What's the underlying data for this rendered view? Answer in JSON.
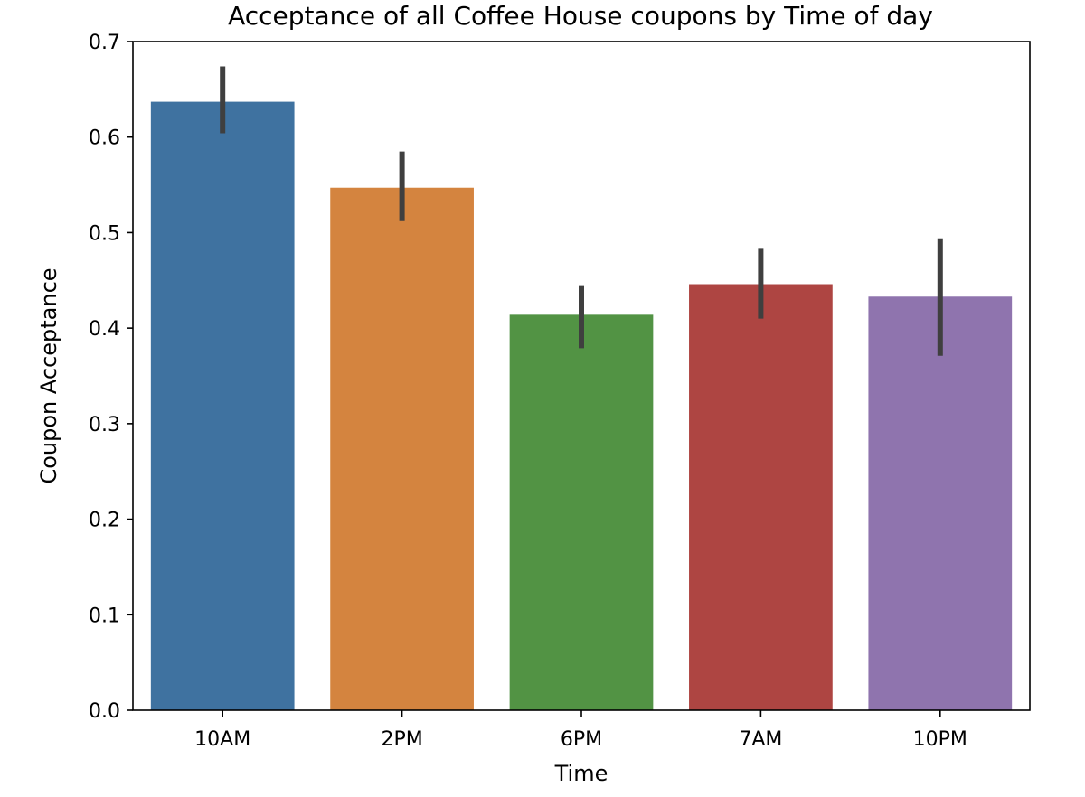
{
  "chart_data": {
    "type": "bar",
    "title": "Acceptance of all Coffee House coupons by Time of day",
    "xlabel": "Time",
    "ylabel": "Coupon Acceptance",
    "categories": [
      "10AM",
      "2PM",
      "6PM",
      "7AM",
      "10PM"
    ],
    "values": [
      0.637,
      0.547,
      0.414,
      0.446,
      0.433
    ],
    "error_low": [
      0.604,
      0.512,
      0.379,
      0.41,
      0.371
    ],
    "error_high": [
      0.674,
      0.585,
      0.445,
      0.483,
      0.494
    ],
    "colors": [
      "#3f72a0",
      "#d4843f",
      "#529344",
      "#ae4542",
      "#8f74ae"
    ],
    "error_bar_color": "#3f3f3f",
    "ylim": [
      0,
      0.7
    ],
    "yticks": [
      0.0,
      0.1,
      0.2,
      0.3,
      0.4,
      0.5,
      0.6,
      0.7
    ],
    "ytick_labels": [
      "0.0",
      "0.1",
      "0.2",
      "0.3",
      "0.4",
      "0.5",
      "0.6",
      "0.7"
    ],
    "grid": false,
    "legend": "none"
  }
}
